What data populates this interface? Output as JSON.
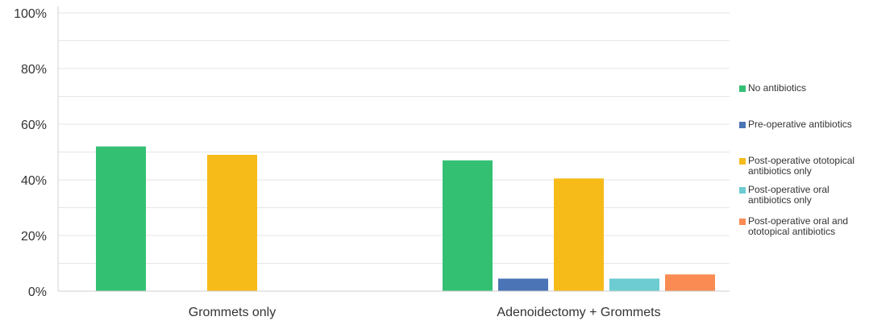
{
  "chart_data": {
    "type": "bar",
    "categories": [
      "Grommets only",
      "Adenoidectomy + Grommets"
    ],
    "series": [
      {
        "name": "No antibiotics",
        "color": "#33c073",
        "values": [
          52,
          47
        ]
      },
      {
        "name": "Pre-operative antibiotics",
        "color": "#4a74b5",
        "values": [
          0,
          4.5
        ]
      },
      {
        "name": "Post-operative ototopical antibiotics only",
        "color": "#f6bb19",
        "values": [
          49,
          40.5
        ]
      },
      {
        "name": "Post-operative oral antibiotics only",
        "color": "#6cccd1",
        "values": [
          0,
          4.5
        ]
      },
      {
        "name": "Post-operative oral and ototopical antibiotics",
        "color": "#f98b53",
        "values": [
          0,
          6
        ]
      }
    ],
    "yticks": [
      "0%",
      "20%",
      "40%",
      "60%",
      "80%",
      "100%"
    ],
    "ylim": [
      0,
      100
    ],
    "grid": true,
    "legend_position": "right",
    "title": "",
    "xlabel": "",
    "ylabel": ""
  }
}
